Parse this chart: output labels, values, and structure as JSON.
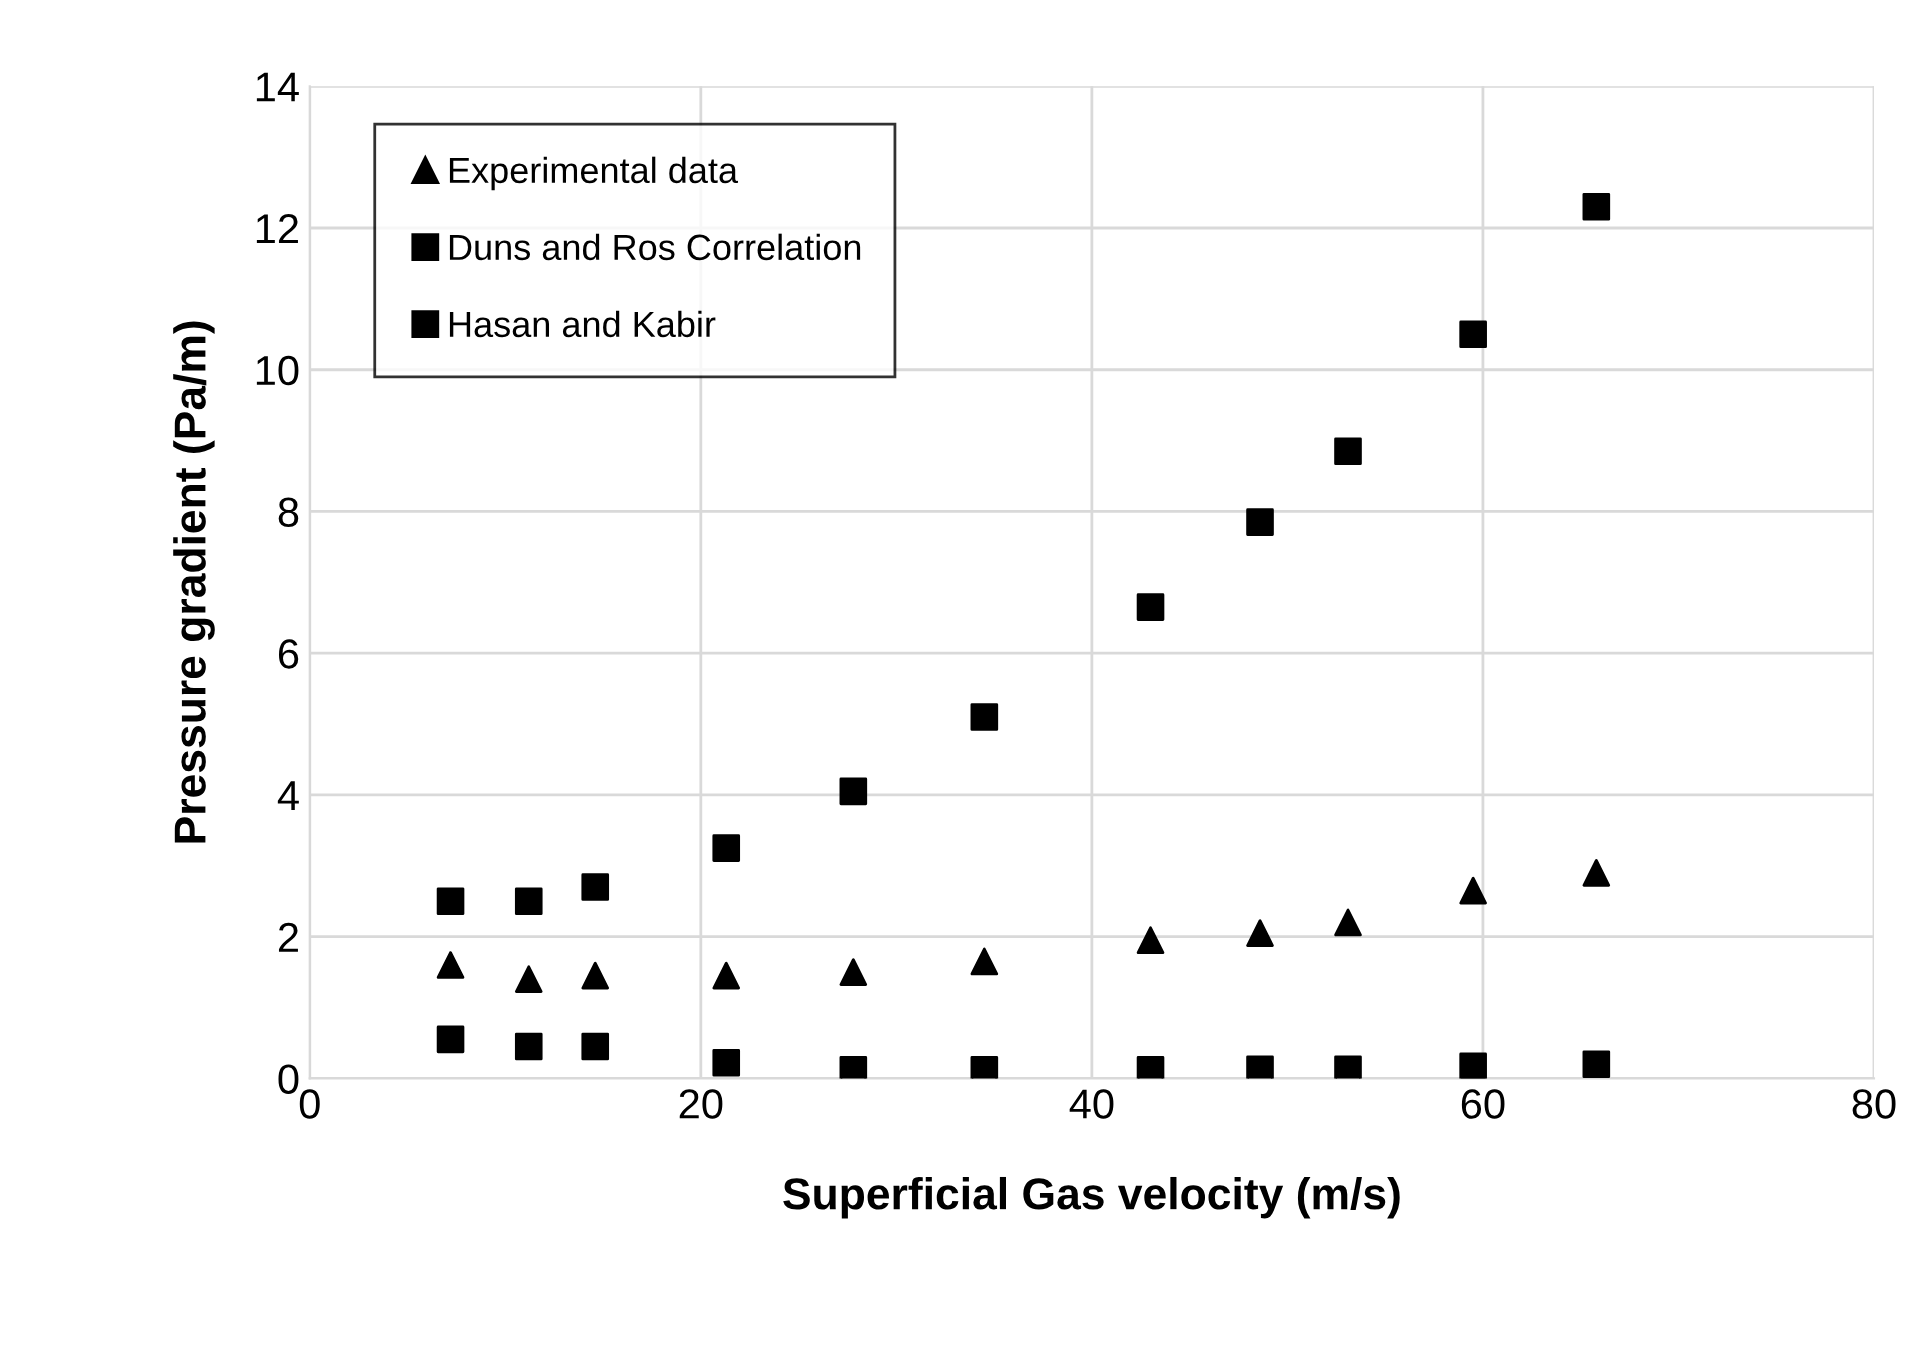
{
  "chart_data": {
    "type": "scatter",
    "xlabel": "Superficial Gas velocity (m/s)",
    "ylabel": "Pressure gradient (Pa/m)",
    "x": [
      7.2,
      11.2,
      14.6,
      21.3,
      27.8,
      34.5,
      43.0,
      48.6,
      53.1,
      59.5,
      65.8
    ],
    "series": [
      {
        "name": "Experimental data",
        "color": "#000000",
        "marker": "triangle",
        "values": [
          1.6,
          1.4,
          1.45,
          1.45,
          1.5,
          1.65,
          1.95,
          2.05,
          2.2,
          2.65,
          2.9
        ]
      },
      {
        "name": "Duns and Ros Correlation",
        "color": "#000000",
        "marker": "square",
        "values": [
          2.5,
          2.5,
          2.7,
          3.25,
          4.05,
          5.1,
          6.65,
          7.85,
          8.85,
          10.5,
          12.3
        ]
      },
      {
        "name": "Hasan and Kabir",
        "color": "#000000",
        "marker": "square",
        "values": [
          0.55,
          0.45,
          0.45,
          0.22,
          0.12,
          0.12,
          0.12,
          0.13,
          0.13,
          0.17,
          0.2
        ]
      }
    ],
    "xlim": [
      0,
      80
    ],
    "xticks": [
      0,
      20,
      40,
      60,
      80
    ],
    "ylim": [
      0,
      14
    ],
    "yticks": [
      0,
      2,
      4,
      6,
      8,
      10,
      12,
      14
    ],
    "grid": true,
    "legend": "top left"
  }
}
